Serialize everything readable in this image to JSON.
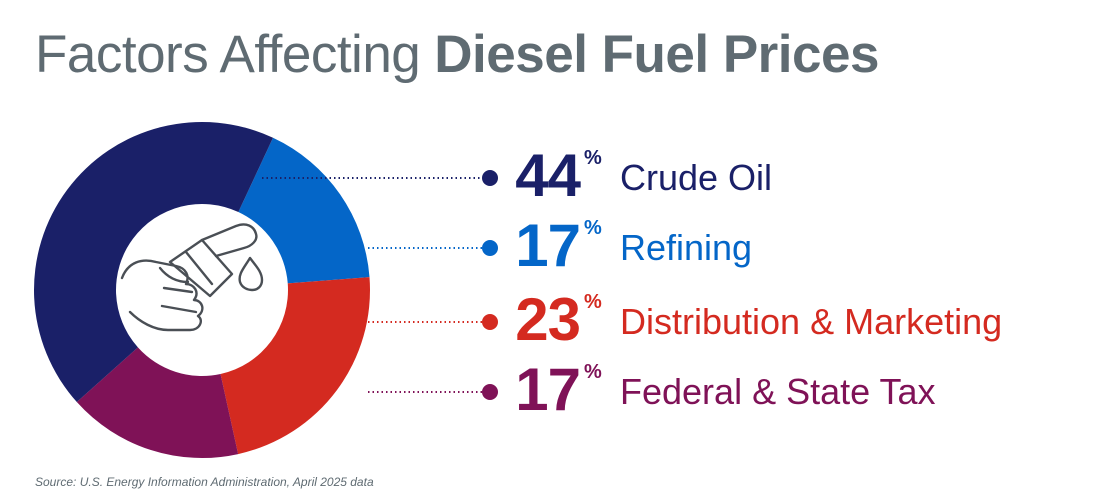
{
  "header": {
    "title_light": "Factors Affecting",
    "title_bold": "Diesel Fuel Prices"
  },
  "chart_data": {
    "type": "pie",
    "donut": true,
    "title": "Factors Affecting Diesel Fuel Prices",
    "series": [
      {
        "name": "Crude Oil",
        "value": 44,
        "color": "#1a2068"
      },
      {
        "name": "Refining",
        "value": 17,
        "color": "#0466c8"
      },
      {
        "name": "Distribution & Marketing",
        "value": 23,
        "color": "#d42a20"
      },
      {
        "name": "Federal & State Tax",
        "value": 17,
        "color": "#7f1257"
      }
    ],
    "unit": "%",
    "legend_placement": "right",
    "center_icon": "fuel-nozzle-icon"
  },
  "legend": [
    {
      "value": "44",
      "sign": "%",
      "label": "Crude Oil",
      "color": "#1a2068"
    },
    {
      "value": "17",
      "sign": "%",
      "label": "Refining",
      "color": "#0466c8"
    },
    {
      "value": "23",
      "sign": "%",
      "label": "Distribution & Marketing",
      "color": "#d42a20"
    },
    {
      "value": "17",
      "sign": "%",
      "label": "Federal & State Tax",
      "color": "#7f1257"
    }
  ],
  "footer": {
    "source": "Source: U.S. Energy Information Administration, April 2025 data"
  },
  "colors": {
    "title": "#5f6b72",
    "background": "#ffffff"
  }
}
